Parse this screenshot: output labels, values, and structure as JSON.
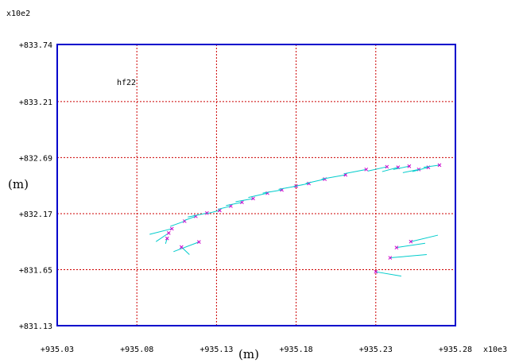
{
  "chart_data": {
    "type": "scatter",
    "x_multiplier": "x10e3",
    "y_multiplier": "x10e2",
    "xlabel": "(m)",
    "ylabel": "(m)",
    "annotation": "hf22",
    "xlim": [
      935.03,
      935.28
    ],
    "ylim": [
      831.13,
      833.74
    ],
    "x_tick_labels": [
      "+935.03",
      "+935.08",
      "+935.13",
      "+935.18",
      "+935.23",
      "+935.28"
    ],
    "x_tick_values": [
      935.03,
      935.08,
      935.13,
      935.18,
      935.23,
      935.28
    ],
    "y_tick_labels": [
      "+833.74",
      "+833.21",
      "+832.69",
      "+832.17",
      "+831.65",
      "+831.13"
    ],
    "y_tick_values": [
      833.74,
      833.21,
      832.69,
      832.17,
      831.65,
      831.13
    ],
    "grid": true,
    "colors": {
      "axis": "#0000cc",
      "grid": "#cc0000",
      "vector": "#00cccc",
      "marker": "#cc00cc"
    },
    "points": [
      {
        "x": 935.119,
        "y": 831.907,
        "dx": -0.016,
        "dy": -0.09
      },
      {
        "x": 935.1,
        "y": 831.99,
        "dx": -0.008,
        "dy": -0.08
      },
      {
        "x": 935.102,
        "y": 832.03,
        "dx": -0.014,
        "dy": -0.052
      },
      {
        "x": 935.11,
        "y": 832.1,
        "dx": -0.009,
        "dy": -0.048
      },
      {
        "x": 935.117,
        "y": 832.145,
        "dx": -0.007,
        "dy": -0.037
      },
      {
        "x": 935.124,
        "y": 832.175,
        "dx": -0.012,
        "dy": -0.037
      },
      {
        "x": 935.132,
        "y": 832.2,
        "dx": -0.008,
        "dy": -0.03
      },
      {
        "x": 935.139,
        "y": 832.24,
        "dx": -0.008,
        "dy": -0.03
      },
      {
        "x": 935.146,
        "y": 832.275,
        "dx": -0.01,
        "dy": -0.03
      },
      {
        "x": 935.153,
        "y": 832.31,
        "dx": -0.011,
        "dy": -0.03
      },
      {
        "x": 935.162,
        "y": 832.36,
        "dx": -0.012,
        "dy": -0.04
      },
      {
        "x": 935.171,
        "y": 832.39,
        "dx": -0.012,
        "dy": -0.03
      },
      {
        "x": 935.18,
        "y": 832.425,
        "dx": -0.011,
        "dy": -0.03
      },
      {
        "x": 935.188,
        "y": 832.45,
        "dx": -0.01,
        "dy": -0.03
      },
      {
        "x": 935.198,
        "y": 832.49,
        "dx": -0.012,
        "dy": -0.04
      },
      {
        "x": 935.211,
        "y": 832.53,
        "dx": -0.015,
        "dy": -0.04
      },
      {
        "x": 935.224,
        "y": 832.58,
        "dx": -0.014,
        "dy": -0.04
      },
      {
        "x": 935.237,
        "y": 832.605,
        "dx": -0.012,
        "dy": -0.04
      },
      {
        "x": 935.244,
        "y": 832.6,
        "dx": -0.01,
        "dy": -0.04
      },
      {
        "x": 935.251,
        "y": 832.61,
        "dx": -0.01,
        "dy": -0.03
      },
      {
        "x": 935.257,
        "y": 832.58,
        "dx": -0.01,
        "dy": -0.03
      },
      {
        "x": 935.263,
        "y": 832.6,
        "dx": -0.01,
        "dy": -0.04
      },
      {
        "x": 935.27,
        "y": 832.62,
        "dx": -0.01,
        "dy": -0.02
      },
      {
        "x": 935.108,
        "y": 831.86,
        "dx": 0.005,
        "dy": -0.07
      },
      {
        "x": 935.099,
        "y": 831.94,
        "dx": -0.001,
        "dy": -0.05
      },
      {
        "x": 935.23,
        "y": 831.63,
        "dx": 0.016,
        "dy": -0.04
      },
      {
        "x": 935.239,
        "y": 831.76,
        "dx": 0.023,
        "dy": 0.03
      },
      {
        "x": 935.243,
        "y": 831.855,
        "dx": 0.018,
        "dy": 0.04
      },
      {
        "x": 935.252,
        "y": 831.91,
        "dx": 0.017,
        "dy": 0.06
      }
    ]
  }
}
